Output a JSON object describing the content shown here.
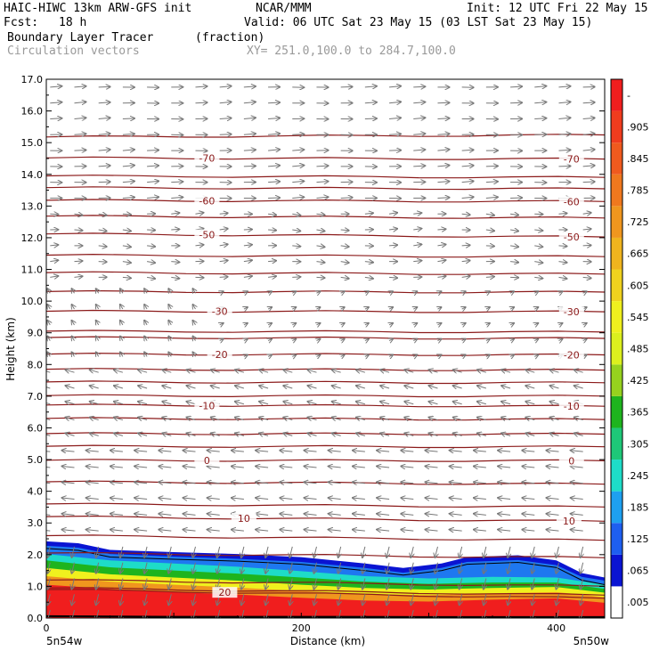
{
  "header": {
    "model": "HAIC-HIWC 13km ARW-GFS init",
    "org": "NCAR/MMM",
    "init": "Init: 12 UTC Fri 22 May 15",
    "fcst_label": "Fcst:",
    "fcst_value": "18 h",
    "valid": "Valid: 06 UTC Sat 23 May 15 (03 LST Sat 23 May 15)",
    "field": "Boundary Layer Tracer",
    "units": "(fraction)",
    "vectors": "Circulation vectors",
    "xy": "XY= 251.0,100.0 to 284.7,100.0"
  },
  "colors": {
    "isotherm": "#8b1a1a",
    "vector": "#777777",
    "pbl_boundary": "#000000"
  },
  "chart_data": {
    "type": "heatmap",
    "xlabel": "Distance (km)",
    "ylabel": "Height (km)",
    "xlim": [
      0,
      438
    ],
    "ylim": [
      0,
      17
    ],
    "x_ticks": [
      {
        "value": 0,
        "label": "0"
      },
      {
        "value": 200,
        "label": "200"
      },
      {
        "value": 400,
        "label": "400"
      }
    ],
    "x_end_labels": {
      "left": "5n54w",
      "right": "5n50w"
    },
    "y_ticks": [
      "0.0",
      "1.0",
      "2.0",
      "3.0",
      "4.0",
      "5.0",
      "6.0",
      "7.0",
      "8.0",
      "9.0",
      "10.0",
      "11.0",
      "12.0",
      "13.0",
      "14.0",
      "15.0",
      "16.0",
      "17.0"
    ],
    "colorbar": {
      "labels": [
        ".005",
        ".065",
        ".125",
        ".185",
        ".245",
        ".305",
        ".365",
        ".425",
        ".485",
        ".545",
        ".605",
        ".665",
        ".725",
        ".785",
        ".845",
        ".905",
        "-"
      ],
      "colors": [
        "#ffffff",
        "#0a14d2",
        "#1e5ff0",
        "#1ea0f0",
        "#1edcc8",
        "#1ec878",
        "#1eb41e",
        "#96d21e",
        "#dcf01e",
        "#f0f01e",
        "#f0d21e",
        "#f0b41e",
        "#f0961e",
        "#f0781e",
        "#f05a1e",
        "#f03c1e",
        "#f01e1e"
      ]
    },
    "tracer_layers": [
      {
        "name": "blue",
        "level": 0.065,
        "color": "#0a14d2",
        "top": [
          [
            0,
            2.42
          ],
          [
            25,
            2.36
          ],
          [
            50,
            2.15
          ],
          [
            100,
            2.08
          ],
          [
            150,
            2.02
          ],
          [
            200,
            1.92
          ],
          [
            250,
            1.72
          ],
          [
            280,
            1.58
          ],
          [
            310,
            1.72
          ],
          [
            330,
            1.92
          ],
          [
            370,
            1.98
          ],
          [
            400,
            1.82
          ],
          [
            420,
            1.42
          ],
          [
            438,
            1.28
          ]
        ]
      },
      {
        "name": "lightblue",
        "level": 0.125,
        "color": "#1e78f0",
        "top": [
          [
            0,
            2.28
          ],
          [
            25,
            2.22
          ],
          [
            50,
            2.02
          ],
          [
            100,
            1.94
          ],
          [
            150,
            1.87
          ],
          [
            200,
            1.77
          ],
          [
            250,
            1.58
          ],
          [
            280,
            1.43
          ],
          [
            310,
            1.58
          ],
          [
            330,
            1.77
          ],
          [
            370,
            1.83
          ],
          [
            400,
            1.67
          ],
          [
            420,
            1.3
          ],
          [
            438,
            1.18
          ]
        ]
      },
      {
        "name": "cyan",
        "level": 0.185,
        "color": "#1edcc8",
        "top": [
          [
            0,
            2.02
          ],
          [
            50,
            1.82
          ],
          [
            100,
            1.72
          ],
          [
            150,
            1.62
          ],
          [
            200,
            1.48
          ],
          [
            250,
            1.32
          ],
          [
            300,
            1.25
          ],
          [
            350,
            1.3
          ],
          [
            400,
            1.28
          ],
          [
            438,
            1.05
          ]
        ]
      },
      {
        "name": "green",
        "level": 0.305,
        "color": "#1eb41e",
        "top": [
          [
            0,
            1.82
          ],
          [
            50,
            1.6
          ],
          [
            100,
            1.5
          ],
          [
            150,
            1.4
          ],
          [
            200,
            1.28
          ],
          [
            250,
            1.15
          ],
          [
            300,
            1.08
          ],
          [
            350,
            1.12
          ],
          [
            400,
            1.12
          ],
          [
            438,
            0.92
          ]
        ]
      },
      {
        "name": "yellow",
        "level": 0.545,
        "color": "#f0f01e",
        "top": [
          [
            0,
            1.58
          ],
          [
            50,
            1.38
          ],
          [
            100,
            1.28
          ],
          [
            150,
            1.18
          ],
          [
            200,
            1.05
          ],
          [
            250,
            0.95
          ],
          [
            300,
            0.9
          ],
          [
            350,
            0.95
          ],
          [
            400,
            0.98
          ],
          [
            438,
            0.8
          ]
        ]
      },
      {
        "name": "orange",
        "level": 0.725,
        "color": "#f0961e",
        "top": [
          [
            0,
            1.32
          ],
          [
            50,
            1.15
          ],
          [
            100,
            1.05
          ],
          [
            150,
            0.96
          ],
          [
            200,
            0.85
          ],
          [
            250,
            0.76
          ],
          [
            300,
            0.72
          ],
          [
            350,
            0.78
          ],
          [
            400,
            0.82
          ],
          [
            438,
            0.66
          ]
        ]
      },
      {
        "name": "red",
        "level": 0.905,
        "color": "#f01e1e",
        "top": [
          [
            0,
            1.05
          ],
          [
            50,
            0.92
          ],
          [
            100,
            0.82
          ],
          [
            150,
            0.74
          ],
          [
            200,
            0.64
          ],
          [
            250,
            0.55
          ],
          [
            300,
            0.52
          ],
          [
            350,
            0.58
          ],
          [
            400,
            0.62
          ],
          [
            438,
            0.48
          ]
        ]
      }
    ],
    "terrain": [
      [
        0,
        0.06
      ],
      [
        100,
        0.04
      ],
      [
        200,
        0.04
      ],
      [
        300,
        0.03
      ],
      [
        438,
        0.03
      ]
    ],
    "temperature_contours": [
      {
        "label": "20",
        "y0": 0.9,
        "y1": 0.62,
        "lx": [
          140
        ]
      },
      {
        "label": "10",
        "y0": 3.2,
        "y1": 3.05,
        "lx": [
          155,
          410
        ]
      },
      {
        "label": "0",
        "y0": 4.98,
        "y1": 4.96,
        "lx": [
          126,
          412
        ]
      },
      {
        "label": "-10",
        "y0": 6.72,
        "y1": 6.68,
        "lx": [
          126,
          412
        ]
      },
      {
        "label": "-20",
        "y0": 8.33,
        "y1": 8.3,
        "lx": [
          136,
          412
        ]
      },
      {
        "label": "-30",
        "y0": 9.68,
        "y1": 9.66,
        "lx": [
          136,
          412
        ]
      },
      {
        "label": "-50",
        "y0": 12.12,
        "y1": 12.02
      },
      {
        "label": "-60",
        "y0": 13.18,
        "y1": 13.14
      },
      {
        "label": "-70",
        "y0": 14.52,
        "y1": 14.48
      },
      {
        "y0": 0.95,
        "y1": 0.72
      },
      {
        "y0": 1.2,
        "y1": 1.0
      },
      {
        "y0": 2.05,
        "y1": 1.9
      },
      {
        "y0": 2.6,
        "y1": 2.45
      },
      {
        "y0": 3.6,
        "y1": 3.5
      },
      {
        "y0": 4.3,
        "y1": 4.22
      },
      {
        "y0": 5.42,
        "y1": 5.4
      },
      {
        "y0": 5.82,
        "y1": 5.8
      },
      {
        "y0": 6.3,
        "y1": 6.26
      },
      {
        "y0": 7.02,
        "y1": 7.0
      },
      {
        "y0": 7.45,
        "y1": 7.42
      },
      {
        "y0": 7.85,
        "y1": 7.82
      },
      {
        "y0": 8.85,
        "y1": 8.82
      },
      {
        "y0": 9.05,
        "y1": 9.02
      },
      {
        "y0": 10.3,
        "y1": 10.28
      },
      {
        "y0": 10.9,
        "y1": 10.85
      },
      {
        "y0": 11.45,
        "y1": 11.4
      },
      {
        "y0": 12.68,
        "y1": 12.62
      },
      {
        "y0": 13.58,
        "y1": 13.54
      },
      {
        "y0": 13.95,
        "y1": 13.9
      },
      {
        "y0": 15.18,
        "y1": 15.24
      }
    ],
    "vectors": {
      "x_spacing_km": 19,
      "z_spacing_km": 0.5
    }
  }
}
